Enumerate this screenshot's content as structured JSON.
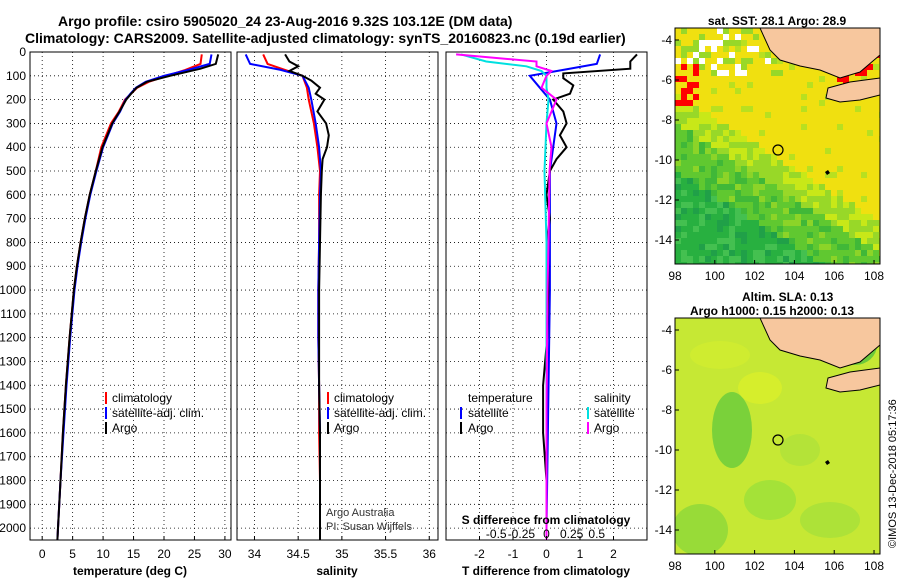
{
  "title_line1": "Argo profile: csiro 5905020_24 23-Aug-2016 9.32S 103.12E (DM data)",
  "title_line2": "Climatology: CARS2009. Satellite-adjusted climatology: synTS_20160823.nc (0.19d earlier)",
  "colors": {
    "climatology": "#ff0000",
    "satellite": "#0000ff",
    "argo": "#000000",
    "sat_diff_T": "#0000ff",
    "sat_diff_S": "#00e0e0",
    "argo_diff_S": "#ff00ff",
    "land": "#f7c79e"
  },
  "depth_ticks": [
    "0",
    "100",
    "200",
    "300",
    "400",
    "500",
    "600",
    "700",
    "800",
    "900",
    "1000",
    "1100",
    "1200",
    "1300",
    "1400",
    "1500",
    "1600",
    "1700",
    "1800",
    "1900",
    "2000"
  ],
  "legend_main": {
    "climatology": "climatology",
    "satellite": "satellite-adj. clim.",
    "argo": "Argo"
  },
  "panel_diff": {
    "header_temperature": "temperature",
    "header_salinity": "salinity",
    "satellite": "satellite",
    "argo": "Argo",
    "xlabel_top": "S difference from climatology",
    "xlabel_bottom": "T difference from climatology",
    "s_ticks": [
      "-0.5",
      "-0.25",
      "0",
      "0.25",
      "0.5"
    ],
    "t_ticks": [
      "-2",
      "-1",
      "0",
      "1",
      "2"
    ]
  },
  "credit1": "Argo Australia",
  "credit2": "PI: Susan Wijffels",
  "map_sst": {
    "title": "sat. SST: 28.1 Argo: 28.9",
    "x_ticks": [
      "98",
      "100",
      "102",
      "104",
      "106",
      "108"
    ],
    "y_ticks": [
      "-4",
      "-6",
      "-8",
      "-10",
      "-12",
      "-14"
    ]
  },
  "map_sla": {
    "title1": "Altim. SLA: 0.13",
    "title2": "Argo h1000: 0.15 h2000: 0.13",
    "x_ticks": [
      "98",
      "100",
      "102",
      "104",
      "106",
      "108"
    ],
    "y_ticks": [
      "-4",
      "-6",
      "-8",
      "-10",
      "-12",
      "-14"
    ]
  },
  "watermark": "©IMOS 13-Dec-2018 05:17:36",
  "chart_data": [
    {
      "type": "line",
      "xlabel": "temperature (deg C)",
      "ylabel": "",
      "xlim": [
        -2,
        31
      ],
      "ylim": [
        2050,
        0
      ],
      "x_ticks": [
        "0",
        "5",
        "10",
        "15",
        "20",
        "25",
        "30"
      ],
      "series": [
        {
          "name": "climatology",
          "depth": [
            10,
            50,
            75,
            100,
            125,
            150,
            175,
            200,
            250,
            300,
            400,
            500,
            600,
            700,
            800,
            900,
            1000,
            1200,
            1400,
            1600,
            1800,
            2000,
            2050
          ],
          "values": [
            26.2,
            26.0,
            23.5,
            20.5,
            17.5,
            15.6,
            14.6,
            13.6,
            12.6,
            11.3,
            9.7,
            8.8,
            7.8,
            7.0,
            6.3,
            5.7,
            5.2,
            4.5,
            3.9,
            3.4,
            3.0,
            2.6,
            2.5
          ]
        },
        {
          "name": "satellite-adj. clim.",
          "depth": [
            10,
            50,
            75,
            100,
            125,
            150,
            175,
            200,
            250,
            300,
            400,
            500,
            600,
            700,
            800,
            900,
            1000,
            1200,
            1400,
            1600,
            1800,
            2000,
            2050
          ],
          "values": [
            27.8,
            27.5,
            24.0,
            20.0,
            17.0,
            15.4,
            14.5,
            13.7,
            12.8,
            11.6,
            10.0,
            8.9,
            7.9,
            7.1,
            6.4,
            5.8,
            5.3,
            4.6,
            4.0,
            3.5,
            3.0,
            2.6,
            2.5
          ]
        },
        {
          "name": "Argo",
          "depth": [
            10,
            50,
            70,
            100,
            125,
            150,
            175,
            200,
            250,
            300,
            400,
            500,
            600,
            700,
            800,
            900,
            1000,
            1200,
            1400,
            1600,
            1800,
            2000,
            2050
          ],
          "values": [
            28.9,
            28.5,
            26.0,
            21.0,
            17.2,
            15.5,
            14.6,
            13.8,
            12.7,
            11.5,
            9.9,
            8.8,
            7.8,
            7.0,
            6.3,
            5.7,
            5.2,
            4.5,
            3.9,
            3.4,
            3.0,
            2.6,
            2.5
          ]
        }
      ]
    },
    {
      "type": "line",
      "xlabel": "salinity",
      "ylabel": "",
      "xlim": [
        33.8,
        36.1
      ],
      "ylim": [
        2050,
        0
      ],
      "x_ticks": [
        "34",
        "34.5",
        "35",
        "35.5",
        "36"
      ],
      "series": [
        {
          "name": "climatology",
          "depth": [
            10,
            50,
            75,
            100,
            150,
            200,
            300,
            400,
            500,
            600,
            800,
            1000,
            1200,
            1400,
            1600,
            1800,
            2000,
            2050
          ],
          "values": [
            34.1,
            34.15,
            34.35,
            34.55,
            34.6,
            34.62,
            34.68,
            34.72,
            34.75,
            34.74,
            34.74,
            34.73,
            34.73,
            34.74,
            34.74,
            34.75,
            34.75,
            34.75
          ]
        },
        {
          "name": "satellite-adj. clim.",
          "depth": [
            10,
            50,
            75,
            100,
            150,
            200,
            300,
            400,
            500,
            600,
            800,
            1000,
            1200,
            1400,
            1600,
            1800,
            2000,
            2050
          ],
          "values": [
            33.9,
            33.95,
            34.3,
            34.55,
            34.62,
            34.65,
            34.7,
            34.74,
            34.76,
            34.75,
            34.74,
            34.73,
            34.73,
            34.74,
            34.75,
            34.75,
            34.75,
            34.75
          ]
        },
        {
          "name": "Argo",
          "depth": [
            10,
            40,
            60,
            80,
            100,
            120,
            150,
            175,
            200,
            250,
            300,
            350,
            400,
            450,
            500,
            600,
            800,
            1000,
            1200,
            1400,
            1600,
            1800,
            2000,
            2050
          ],
          "values": [
            34.35,
            34.4,
            34.5,
            34.4,
            34.55,
            34.65,
            34.75,
            34.7,
            34.8,
            34.72,
            34.82,
            34.85,
            34.83,
            34.78,
            34.77,
            34.76,
            34.75,
            34.74,
            34.74,
            34.74,
            34.75,
            34.75,
            34.75,
            34.75
          ]
        }
      ]
    },
    {
      "type": "line",
      "xlabel": "T difference from climatology",
      "ylabel": "",
      "xlim": [
        -3,
        3
      ],
      "ylim": [
        2050,
        0
      ],
      "series": [
        {
          "name": "temperature satellite",
          "depth": [
            10,
            50,
            75,
            100,
            150,
            200,
            300,
            500,
            800,
            1000,
            1500,
            2000
          ],
          "values": [
            1.6,
            1.5,
            0.5,
            -0.5,
            -0.2,
            0.1,
            0.3,
            0.1,
            0.1,
            0.1,
            0.05,
            0.0
          ]
        },
        {
          "name": "temperature Argo",
          "depth": [
            10,
            40,
            70,
            90,
            110,
            140,
            175,
            200,
            250,
            300,
            350,
            400,
            450,
            500,
            600,
            700,
            800,
            900,
            1000,
            1200,
            1400,
            1600,
            1800,
            2000,
            2050
          ],
          "values": [
            2.7,
            2.5,
            2.5,
            0.5,
            0.5,
            0.8,
            0.7,
            0.2,
            0.5,
            0.6,
            0.4,
            0.6,
            0.3,
            0.1,
            0.0,
            0.1,
            0.0,
            0.05,
            0.05,
            0.02,
            -0.1,
            -0.1,
            0.0,
            0.0,
            0.0
          ]
        },
        {
          "name": "salinity satellite",
          "depth": [
            10,
            40,
            60,
            80,
            100,
            150,
            200,
            300,
            500,
            800,
            1000,
            1500,
            2000,
            2050
          ],
          "values": [
            -0.85,
            -0.6,
            -0.2,
            -0.05,
            0.0,
            0.0,
            0.02,
            0.0,
            -0.02,
            0.0,
            0.0,
            0.0,
            0.0,
            0.0
          ]
        },
        {
          "name": "salinity Argo",
          "depth": [
            10,
            40,
            60,
            80,
            100,
            150,
            200,
            250,
            300,
            400,
            500,
            800,
            1000,
            1500,
            2000,
            2050
          ],
          "values": [
            -0.9,
            -0.1,
            -0.1,
            0.05,
            0.0,
            -0.05,
            0.1,
            0.05,
            0.0,
            0.05,
            0.03,
            0.02,
            0.01,
            0.0,
            0.0,
            0.0
          ]
        }
      ]
    }
  ]
}
